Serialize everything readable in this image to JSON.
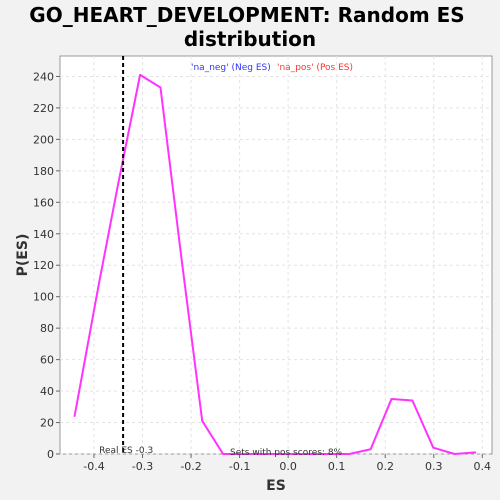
{
  "chart_data": {
    "type": "line",
    "title_line1": "GO_HEART_DEVELOPMENT: Random ES",
    "title_line2": "distribution",
    "xlabel": "ES",
    "ylabel": "P(ES)",
    "xlim": [
      -0.47,
      0.42
    ],
    "ylim": [
      0,
      253
    ],
    "xticks": [
      -0.4,
      -0.3,
      -0.2,
      -0.1,
      0.0,
      0.1,
      0.2,
      0.3,
      0.4
    ],
    "xtick_labels": [
      "-0.4",
      "-0.3",
      "-0.2",
      "-0.1",
      "0.0",
      "0.1",
      "0.2",
      "0.3",
      "0.4"
    ],
    "yticks": [
      0,
      20,
      40,
      60,
      80,
      100,
      120,
      140,
      160,
      180,
      200,
      220,
      240
    ],
    "ytick_labels": [
      "0",
      "20",
      "40",
      "60",
      "80",
      "100",
      "120",
      "140",
      "160",
      "180",
      "200",
      "220",
      "240"
    ],
    "grid": true,
    "series": [
      {
        "color": "#ff33ff",
        "x": [
          -0.44,
          -0.39,
          -0.35,
          -0.305,
          -0.263,
          -0.22,
          -0.177,
          -0.134,
          -0.09,
          -0.047,
          -0.004,
          0.039,
          0.083,
          0.126,
          0.17,
          0.213,
          0.256,
          0.299,
          0.343,
          0.386
        ],
        "y": [
          24,
          108,
          172,
          241,
          233,
          125,
          21,
          0,
          0,
          0,
          0,
          0,
          0,
          0,
          3,
          35,
          34,
          4,
          0,
          1
        ]
      }
    ],
    "real_es": {
      "x": -0.34,
      "label": "Real ES -0.3",
      "color": "#000000"
    },
    "legend": [
      {
        "text": "'na_neg' (Neg ES)",
        "color": "#3333ff"
      },
      {
        "text": "'na_pos' (Pos ES)",
        "color": "#ff3333"
      }
    ],
    "annotation": "Sets with pos scores: 8%"
  }
}
